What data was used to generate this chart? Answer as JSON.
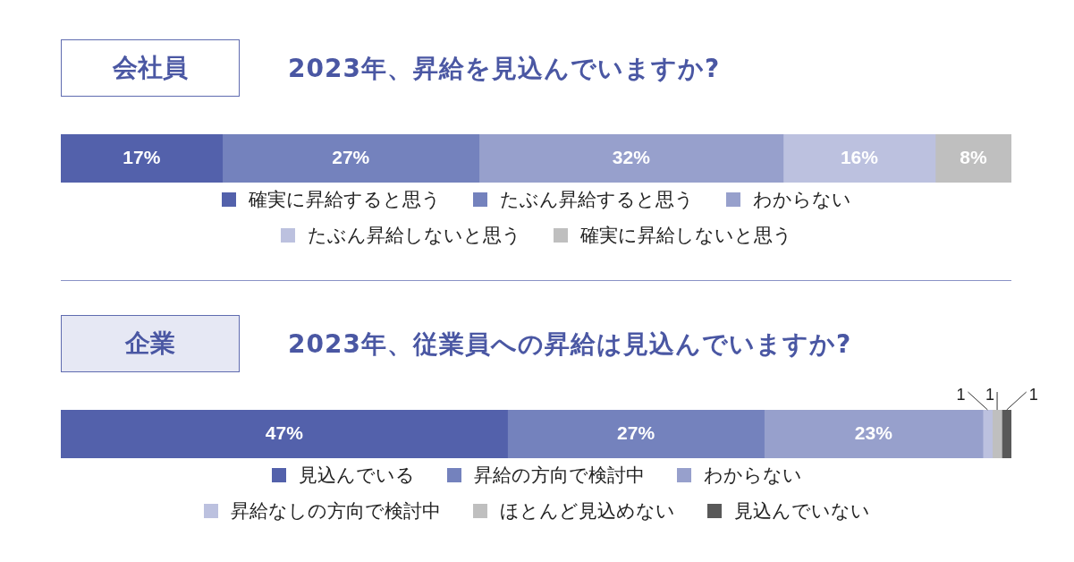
{
  "chart_data": [
    {
      "type": "bar",
      "orientation": "horizontal",
      "stacked": true,
      "title": "2023年、昇給を見込んでいますか?",
      "annotations": [
        "会社員"
      ],
      "categories": [
        null
      ],
      "xlim": [
        0,
        100
      ],
      "tick_labels": false,
      "legend": "bottom",
      "series": [
        {
          "name": "確実に昇給すると思う",
          "color": "#5361ab",
          "values": [
            17
          ],
          "value_labels": [
            "17%"
          ]
        },
        {
          "name": "たぶん昇給すると思う",
          "color": "#7482bd",
          "values": [
            27
          ],
          "value_labels": [
            "27%"
          ]
        },
        {
          "name": "わからない",
          "color": "#97a0cc",
          "values": [
            32
          ],
          "value_labels": [
            "32%"
          ]
        },
        {
          "name": "たぶん昇給しないと思う",
          "color": "#bcc1df",
          "values": [
            16
          ],
          "value_labels": [
            "16%"
          ]
        },
        {
          "name": "確実に昇給しないと思う",
          "color": "#bfbfbf",
          "values": [
            8
          ],
          "value_labels": [
            "8%"
          ]
        }
      ]
    },
    {
      "type": "bar",
      "orientation": "horizontal",
      "stacked": true,
      "title": "2023年、従業員への昇給は見込んでいますか?",
      "annotations": [
        "企業"
      ],
      "categories": [
        null
      ],
      "xlim": [
        0,
        100
      ],
      "tick_labels": false,
      "legend": "bottom",
      "series": [
        {
          "name": "見込んでいる",
          "color": "#5361ab",
          "values": [
            47
          ],
          "value_labels": [
            "47%"
          ]
        },
        {
          "name": "昇給の方向で検討中",
          "color": "#7482bd",
          "values": [
            27
          ],
          "value_labels": [
            "27%"
          ]
        },
        {
          "name": "わからない",
          "color": "#97a0cc",
          "values": [
            23
          ],
          "value_labels": [
            "23%"
          ]
        },
        {
          "name": "昇給なしの方向で検討中",
          "color": "#bcc1df",
          "values": [
            1
          ],
          "value_labels": [
            "1"
          ]
        },
        {
          "name": "ほとんど見込めない",
          "color": "#bfbfbf",
          "values": [
            1
          ],
          "value_labels": [
            "1"
          ]
        },
        {
          "name": "見込んでいない",
          "color": "#595959",
          "values": [
            1
          ],
          "value_labels": [
            "1"
          ]
        }
      ]
    }
  ]
}
